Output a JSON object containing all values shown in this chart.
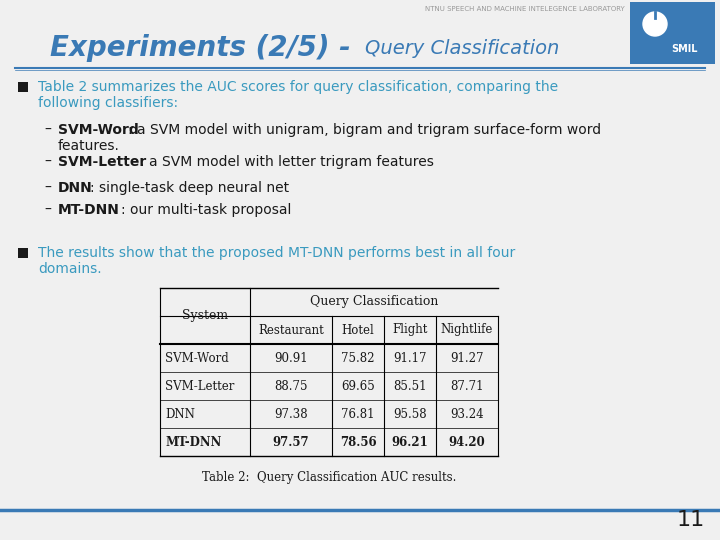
{
  "title_main": "Experiments (2/5) - ",
  "title_sub": "Query Classification",
  "header_text": "NTNU SPEECH AND MACHINE INTELEGENCE LABORATORY",
  "bg_color": "#f0f0f0",
  "title_color": "#3a7ab5",
  "header_color": "#999999",
  "text_color": "#1a1a1a",
  "teal_color": "#3a9abf",
  "divider_color": "#3a7ab5",
  "bullet_color": "#1a1a1a",
  "table_systems": [
    "SVM-Word",
    "SVM-Letter",
    "DNN",
    "MT-DNN"
  ],
  "table_header_group": "Query Classification",
  "table_columns": [
    "Restaurant",
    "Hotel",
    "Flight",
    "Nightlife"
  ],
  "table_data": [
    [
      90.91,
      75.82,
      91.17,
      91.27
    ],
    [
      88.75,
      69.65,
      85.51,
      87.71
    ],
    [
      97.38,
      76.81,
      95.58,
      93.24
    ],
    [
      97.57,
      78.56,
      96.21,
      94.2
    ]
  ],
  "table_bold_row": 3,
  "table_caption": "Table 2:  Query Classification AUC results.",
  "page_number": "11",
  "smil_box_color": "#3a7ab5",
  "smil_text_color": "#ffffff"
}
